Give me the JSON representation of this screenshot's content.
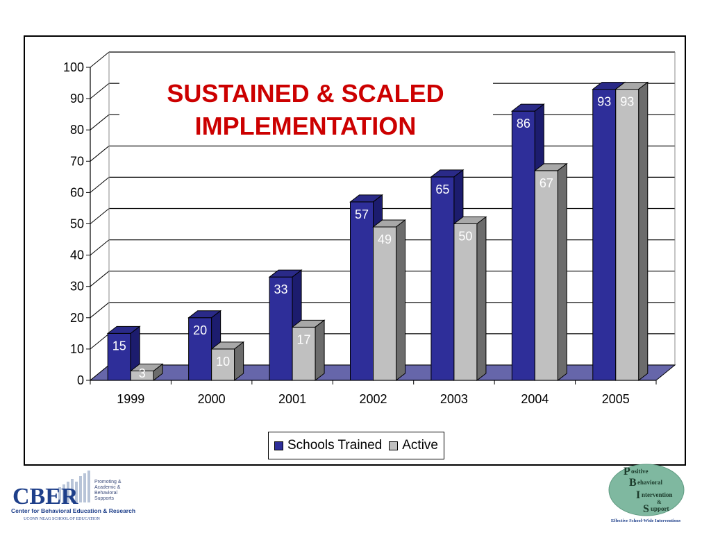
{
  "chart_data": {
    "type": "bar",
    "title": "SUSTAINED & SCALED IMPLEMENTATION",
    "title_lines": [
      "SUSTAINED & SCALED",
      "IMPLEMENTATION"
    ],
    "categories": [
      "1999",
      "2000",
      "2001",
      "2002",
      "2003",
      "2004",
      "2005"
    ],
    "series": [
      {
        "name": "Schools Trained",
        "values": [
          15,
          20,
          33,
          57,
          65,
          86,
          93
        ],
        "color": "#2e2e99"
      },
      {
        "name": "Active",
        "values": [
          3,
          10,
          17,
          49,
          50,
          67,
          93
        ],
        "color": "#c0c0c0"
      }
    ],
    "ylim": [
      0,
      100
    ],
    "yticks": [
      0,
      10,
      20,
      30,
      40,
      50,
      60,
      70,
      80,
      90,
      100
    ],
    "xlabel": "",
    "ylabel": "",
    "grid": true,
    "legend_position": "bottom",
    "style": "3d-clustered-column",
    "title_color": "#cc0000",
    "floor_color": "#6666aa"
  },
  "logos": {
    "cber": {
      "main": "CBER",
      "side_text": [
        "Promoting &",
        "Academic &",
        "Behavioral",
        "Supports"
      ],
      "line1": "Center for Behavioral Education & Research",
      "line2": "UCONN NEAG SCHOOL OF EDUCATION"
    },
    "pbis": {
      "lines": [
        "ositive",
        "ehavioral",
        "ntervention",
        "&",
        "upport"
      ],
      "tagline": "Effective School-Wide Interventions"
    }
  }
}
